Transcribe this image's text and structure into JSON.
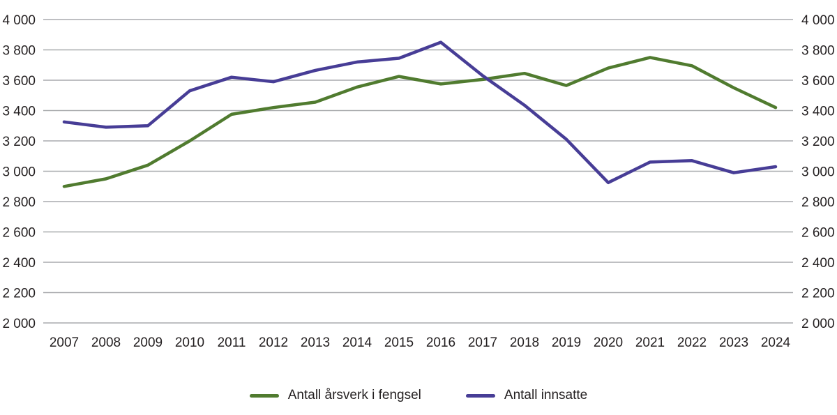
{
  "colors": {
    "background": "#ffffff",
    "grid": "#a8aaad",
    "text": "#231f20",
    "series_green": "#507b2f",
    "series_purple": "#473d96"
  },
  "chart_data": {
    "type": "line",
    "title": "",
    "xlabel": "",
    "ylabel": "",
    "grid": true,
    "legend_position": "bottom",
    "y_axis_labels_both_sides": true,
    "ylim": [
      2000,
      4000
    ],
    "x": [
      2007,
      2008,
      2009,
      2010,
      2011,
      2012,
      2013,
      2014,
      2015,
      2016,
      2017,
      2018,
      2019,
      2020,
      2021,
      2022,
      2023,
      2024
    ],
    "y_ticks": [
      {
        "value": 4000,
        "label": "4 000"
      },
      {
        "value": 3800,
        "label": "3 800"
      },
      {
        "value": 3600,
        "label": "3 600"
      },
      {
        "value": 3400,
        "label": "3 400"
      },
      {
        "value": 3200,
        "label": "3 200"
      },
      {
        "value": 3000,
        "label": "3 000"
      },
      {
        "value": 2800,
        "label": "2 800"
      },
      {
        "value": 2600,
        "label": "2 600"
      },
      {
        "value": 2400,
        "label": "2 400"
      },
      {
        "value": 2200,
        "label": "2 200"
      },
      {
        "value": 2000,
        "label": "2 000"
      }
    ],
    "series": [
      {
        "id": "arsverk",
        "name": "Antall årsverk i fengsel",
        "color": "#507b2f",
        "values": [
          2900,
          2950,
          3040,
          3200,
          3375,
          3420,
          3455,
          3555,
          3625,
          3575,
          3605,
          3645,
          3565,
          3680,
          3750,
          3695,
          3550,
          3420
        ]
      },
      {
        "id": "innsatte",
        "name": "Antall innsatte",
        "color": "#473d96",
        "values": [
          3325,
          3290,
          3300,
          3530,
          3620,
          3590,
          3665,
          3720,
          3745,
          3850,
          3630,
          3435,
          3210,
          2925,
          3060,
          3070,
          2990,
          3030
        ]
      }
    ]
  }
}
